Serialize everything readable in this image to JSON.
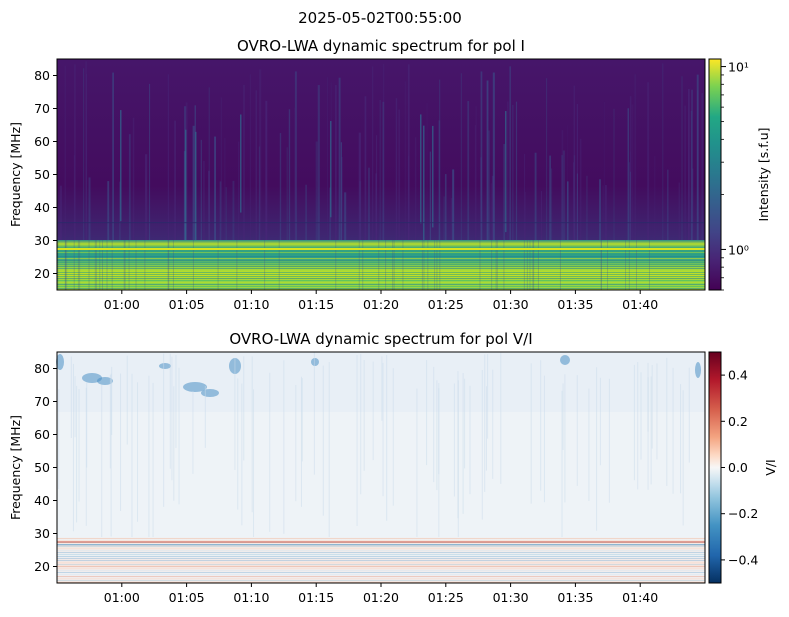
{
  "figure": {
    "suptitle": "2025-05-02T00:55:00"
  },
  "chart_data": [
    {
      "type": "heatmap",
      "title": "OVRO-LWA dynamic spectrum for pol I",
      "xlabel": "",
      "ylabel": "Frequency [MHz]",
      "x_tick_labels": [
        "01:00",
        "01:05",
        "01:10",
        "01:15",
        "01:20",
        "01:25",
        "01:30",
        "01:35",
        "01:40"
      ],
      "x_tick_values_minutes": [
        60,
        65,
        70,
        75,
        80,
        85,
        90,
        95,
        100
      ],
      "xlim_minutes": [
        55,
        105
      ],
      "y_ticks": [
        20,
        30,
        40,
        50,
        60,
        70,
        80
      ],
      "ylim": [
        15,
        85
      ],
      "colormap": "viridis",
      "colorbar": {
        "label": "Intensity [s.f.u]",
        "scale": "log",
        "range": [
          0.6,
          11
        ],
        "major_ticks": [
          1,
          10
        ],
        "major_tick_labels": [
          "10⁰",
          "10¹"
        ]
      },
      "features": {
        "bright_band_mhz": [
          15,
          28
        ],
        "bright_line_mhz": 27.5,
        "background_level_sfu": 0.7
      }
    },
    {
      "type": "heatmap",
      "title": "OVRO-LWA dynamic spectrum for pol V/I",
      "xlabel": "",
      "ylabel": "Frequency [MHz]",
      "x_tick_labels": [
        "01:00",
        "01:05",
        "01:10",
        "01:15",
        "01:20",
        "01:25",
        "01:30",
        "01:35",
        "01:40"
      ],
      "x_tick_values_minutes": [
        60,
        65,
        70,
        75,
        80,
        85,
        90,
        95,
        100
      ],
      "xlim_minutes": [
        55,
        105
      ],
      "y_ticks": [
        20,
        30,
        40,
        50,
        60,
        70,
        80
      ],
      "ylim": [
        15,
        85
      ],
      "colormap": "RdBu_r",
      "colorbar": {
        "label": "V/I",
        "scale": "linear",
        "range": [
          -0.5,
          0.5
        ],
        "ticks": [
          -0.4,
          -0.2,
          0.0,
          0.2,
          0.4
        ],
        "tick_labels": [
          "−0.4",
          "−0.2",
          "0.0",
          "0.2",
          "0.4"
        ]
      }
    }
  ]
}
